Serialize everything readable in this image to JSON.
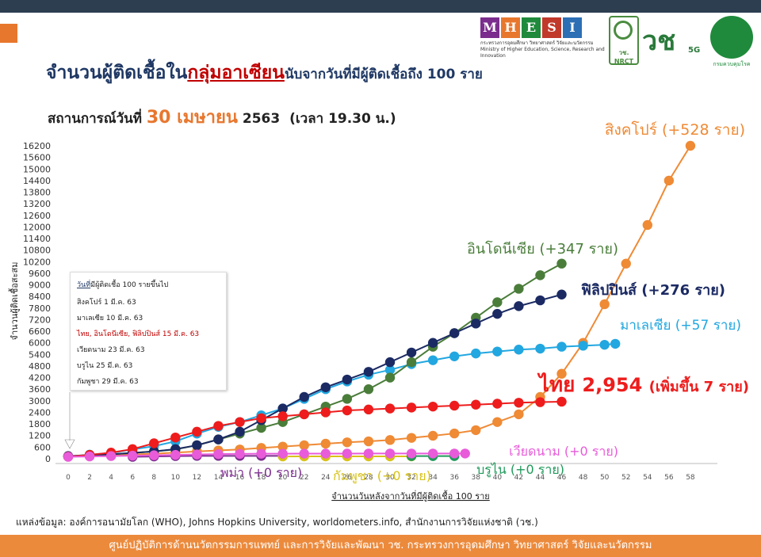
{
  "header": {
    "title_part1": "จำนวนผู้ติดเชื้อใน",
    "title_highlight": "กลุ่มอาเซียน",
    "title_part2": "นับจากวันที่มีผู้ติดเชื้อถึง 100 ราย",
    "subtitle_prefix": "สถานการณ์วันที่",
    "subtitle_date": "30 เมษายน",
    "subtitle_year": "2563",
    "subtitle_time": "(เวลา 19.30 น.)"
  },
  "logos": {
    "mhesi_letters": [
      "M",
      "H",
      "E",
      "S",
      "I"
    ],
    "mhesi_colors": [
      "#7b2d8e",
      "#e8772e",
      "#1f8a3b",
      "#c0392b",
      "#2c6fb5"
    ],
    "mhesi_sub_th": "กระทรวงการอุดมศึกษา วิทยาศาสตร์ วิจัยและนวัตกรรม",
    "mhesi_sub_en": "Ministry of Higher Education, Science, Research and Innovation",
    "nrct_label": "วช. NRCT",
    "vc_label": "วช",
    "vc_5g": "5G",
    "ddc_label": "กรมควบคุมโรค"
  },
  "legend_box": {
    "heading_underlined": "วันที่",
    "heading_rest": "มีผู้ติดเชื้อ 100 รายขึ้นไป",
    "rows": [
      {
        "text": "สิงคโปร์     1 มี.ค. 63",
        "red": false
      },
      {
        "text": "มาเลเซีย    10 มี.ค. 63",
        "red": false
      },
      {
        "text": "ไทย, อินโดนีเซีย, ฟิลิปปินส์  15 มี.ค. 63",
        "red": true
      },
      {
        "text": "เวียดนาม    23 มี.ค. 63",
        "red": false
      },
      {
        "text": "บรูไน        25 มี.ค. 63",
        "red": false
      },
      {
        "text": "กัมพูชา       29 มี.ค. 63",
        "red": false
      }
    ]
  },
  "source": "แหล่งข้อมูล: องค์การอนามัยโลก (WHO), Johns Hopkins University, worldometers.info, สำนักงานการวิจัยแห่งชาติ (วช.)",
  "footer": "ศูนย์ปฏิบัติการด้านนวัตกรรมการแพทย์ และการวิจัยและพัฒนา  วช.   กระทรวงการอุดมศึกษา วิทยาศาสตร์ วิจัยและนวัตกรรม",
  "chart_data": {
    "type": "line",
    "xlabel": "จำนวนวันหลังจากวันที่มีผู้ติดเชื้อ 100 ราย",
    "ylabel": "จำนวนผู้ติดเชื้อสะสม",
    "xlim": [
      0,
      60
    ],
    "ylim": [
      0,
      16200
    ],
    "yticks": [
      0,
      600,
      1200,
      1800,
      2400,
      3000,
      3600,
      4200,
      4800,
      5400,
      6000,
      6600,
      7200,
      7800,
      8400,
      9000,
      9600,
      10200,
      10800,
      11400,
      12000,
      12600,
      13200,
      13800,
      14400,
      15000,
      15600,
      16200
    ],
    "xticks": [
      0,
      2,
      4,
      6,
      8,
      10,
      12,
      14,
      16,
      18,
      20,
      22,
      24,
      26,
      28,
      30,
      32,
      34,
      36,
      38,
      40,
      42,
      44,
      46,
      48,
      50,
      52,
      54,
      56,
      58
    ],
    "grid": false,
    "series": [
      {
        "name": "สิงคโปร์",
        "label": "สิงคโปร์ (+528 ราย)",
        "color": "#ef8a35",
        "x": [
          0,
          2,
          4,
          6,
          8,
          10,
          12,
          14,
          16,
          18,
          20,
          22,
          24,
          26,
          28,
          30,
          32,
          34,
          36,
          38,
          40,
          42,
          44,
          46,
          48,
          50,
          52,
          54,
          56,
          58
        ],
        "y": [
          110,
          140,
          170,
          220,
          260,
          320,
          380,
          430,
          480,
          560,
          630,
          700,
          780,
          850,
          900,
          970,
          1080,
          1190,
          1310,
          1480,
          1900,
          2300,
          3200,
          4400,
          6000,
          8000,
          10100,
          12100,
          14400,
          16200
        ]
      },
      {
        "name": "อินโดนีเซีย",
        "label": "อินโดนีเซีย (+347 ราย)",
        "color": "#4a7d3a",
        "x": [
          0,
          2,
          4,
          6,
          8,
          10,
          12,
          14,
          16,
          18,
          20,
          22,
          24,
          26,
          28,
          30,
          32,
          34,
          36,
          38,
          40,
          42,
          44,
          46
        ],
        "y": [
          120,
          170,
          230,
          300,
          380,
          480,
          700,
          1000,
          1300,
          1600,
          1900,
          2300,
          2700,
          3100,
          3600,
          4200,
          5000,
          5800,
          6500,
          7300,
          8100,
          8800,
          9500,
          10100
        ]
      },
      {
        "name": "ฟิลิปปินส์",
        "label": "ฟิลิปปินส์ (+276 ราย)",
        "color": "#1b2a63",
        "x": [
          0,
          2,
          4,
          6,
          8,
          10,
          12,
          14,
          16,
          18,
          20,
          22,
          24,
          26,
          28,
          30,
          32,
          34,
          36,
          38,
          40,
          42,
          44,
          46
        ],
        "y": [
          140,
          190,
          230,
          300,
          380,
          500,
          700,
          1000,
          1400,
          2000,
          2600,
          3200,
          3700,
          4100,
          4500,
          5000,
          5500,
          6000,
          6500,
          7000,
          7500,
          7900,
          8200,
          8500
        ]
      },
      {
        "name": "มาเลเซีย",
        "label": "มาเลเซีย (+57 ราย)",
        "color": "#22a7e0",
        "x": [
          0,
          2,
          4,
          6,
          8,
          10,
          12,
          14,
          16,
          18,
          20,
          22,
          24,
          26,
          28,
          30,
          32,
          34,
          36,
          38,
          40,
          42,
          44,
          46,
          48,
          50,
          51
        ],
        "y": [
          120,
          210,
          300,
          480,
          650,
          900,
          1300,
          1650,
          1900,
          2250,
          2600,
          3100,
          3600,
          4000,
          4350,
          4600,
          4900,
          5100,
          5300,
          5450,
          5550,
          5650,
          5700,
          5800,
          5850,
          5900,
          5950
        ]
      },
      {
        "name": "ไทย",
        "label_prefix": "ไทย",
        "label_value": "2,954",
        "label_suffix": "(เพิ่มขึ้น 7 ราย)",
        "color": "#ee1c1c",
        "x": [
          0,
          2,
          4,
          6,
          8,
          10,
          12,
          14,
          16,
          18,
          20,
          22,
          24,
          26,
          28,
          30,
          32,
          34,
          36,
          38,
          40,
          42,
          44,
          46
        ],
        "y": [
          110,
          200,
          320,
          500,
          800,
          1100,
          1400,
          1700,
          1900,
          2100,
          2200,
          2300,
          2400,
          2500,
          2550,
          2600,
          2650,
          2700,
          2750,
          2800,
          2850,
          2900,
          2930,
          2954
        ]
      },
      {
        "name": "เวียดนาม",
        "label": "เวียดนาม (+0 ราย)",
        "color": "#e85bd9",
        "x": [
          0,
          2,
          4,
          6,
          8,
          10,
          12,
          14,
          16,
          18,
          20,
          22,
          24,
          26,
          28,
          30,
          32,
          34,
          36,
          37
        ],
        "y": [
          100,
          120,
          140,
          160,
          180,
          200,
          220,
          240,
          250,
          260,
          260,
          265,
          268,
          268,
          270,
          270,
          270,
          270,
          270,
          270
        ]
      },
      {
        "name": "พม่า",
        "label": "พม่า (+0 ราย)",
        "color": "#7b2d8e",
        "x": [
          6,
          8,
          10,
          12,
          14,
          16,
          18,
          20
        ],
        "y": [
          100,
          120,
          140,
          150,
          150,
          150,
          150,
          150
        ]
      },
      {
        "name": "กัมพูชา",
        "label": "กัมพูชา (+0 ราย)",
        "color": "#d8c21a",
        "x": [
          20,
          22,
          24,
          26,
          28,
          30,
          32
        ],
        "y": [
          120,
          122,
          122,
          122,
          122,
          122,
          122
        ]
      },
      {
        "name": "บรูไน",
        "label": "บรูไน (+0 ราย)",
        "color": "#1f9a5a",
        "x": [
          32,
          34,
          36
        ],
        "y": [
          138,
          138,
          138
        ]
      }
    ]
  }
}
